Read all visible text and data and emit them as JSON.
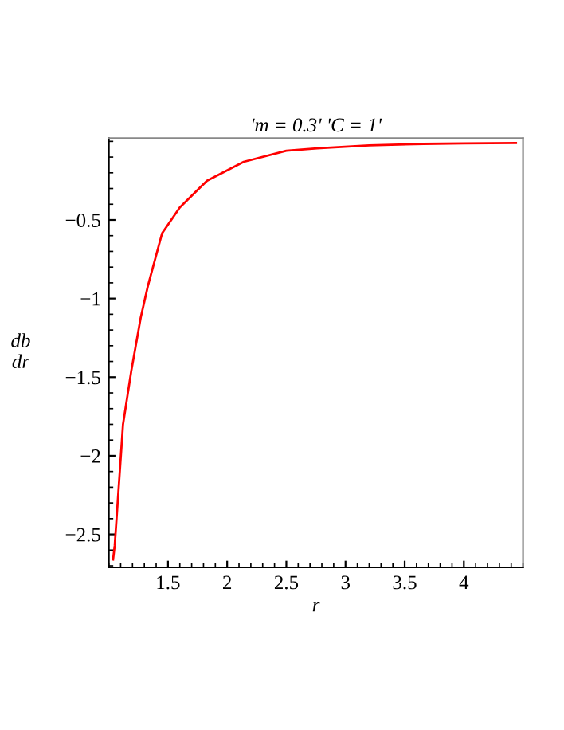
{
  "chart_data": {
    "type": "line",
    "title": "'m = 0.3' 'C = 1'",
    "xlabel": "r",
    "ylabel": "db\ndr",
    "x": [
      1.036,
      1.05,
      1.12,
      1.19,
      1.27,
      1.33,
      1.45,
      1.6,
      1.83,
      2.14,
      2.5,
      2.76,
      3.2,
      3.66,
      4.0,
      4.44
    ],
    "series": [
      {
        "color": "#ff0000",
        "values": [
          -2.66,
          -2.57,
          -1.8,
          -1.46,
          -1.12,
          -0.92,
          -0.585,
          -0.42,
          -0.25,
          -0.13,
          -0.06,
          -0.044,
          -0.025,
          -0.016,
          -0.013,
          -0.01
        ]
      }
    ],
    "xlim": [
      1.0,
      4.5
    ],
    "ylim": [
      -2.71,
      0.02
    ],
    "xticks": [
      1.5,
      2,
      2.5,
      3,
      3.5,
      4
    ],
    "yticks": [
      {
        "value": -0.5,
        "label": "−0.5"
      },
      {
        "value": -1,
        "label": "−1"
      },
      {
        "value": -1.5,
        "label": "−1.5"
      },
      {
        "value": -2,
        "label": "−2"
      },
      {
        "value": -2.5,
        "label": "−2.5"
      }
    ],
    "grid": false,
    "legend": false
  }
}
